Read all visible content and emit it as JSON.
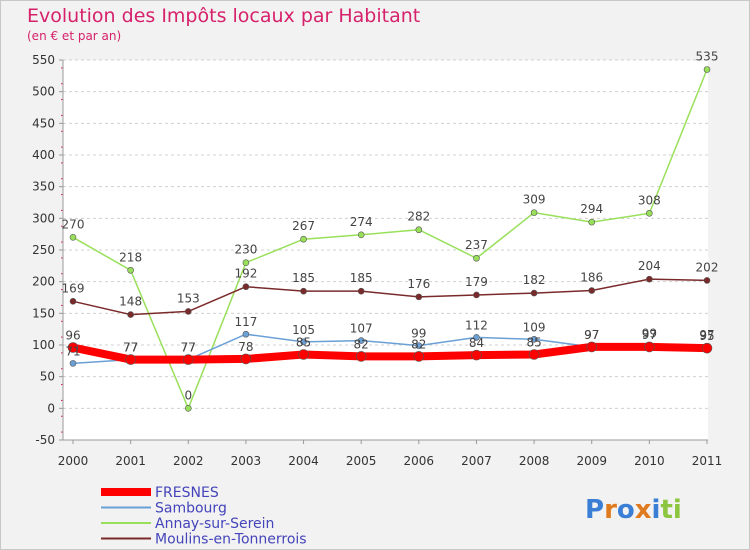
{
  "chart_data": {
    "type": "line",
    "title": "Evolution des Impôts locaux par Habitant",
    "subtitle": "(en € et par an)",
    "xlabel": "",
    "ylabel": "",
    "ylim": [
      -50,
      550
    ],
    "yticks": [
      -50,
      0,
      50,
      100,
      150,
      200,
      250,
      300,
      350,
      400,
      450,
      500,
      550
    ],
    "x": [
      "2000",
      "2001",
      "2002",
      "2003",
      "2004",
      "2005",
      "2006",
      "2007",
      "2008",
      "2009",
      "2010",
      "2011"
    ],
    "grid": "horizontal dashed",
    "legend_position": "bottom-left",
    "series": [
      {
        "name": "FRESNES",
        "color": "#ff0000",
        "values": [
          96,
          77,
          77,
          78,
          85,
          82,
          82,
          84,
          85,
          97,
          97,
          95
        ]
      },
      {
        "name": "Sambourg",
        "color": "#6aa0d6",
        "values": [
          71,
          77,
          77,
          117,
          105,
          107,
          99,
          112,
          109,
          97,
          99,
          97
        ]
      },
      {
        "name": "Annay-sur-Serein",
        "color": "#99e05a",
        "values": [
          270,
          218,
          0,
          230,
          267,
          274,
          282,
          237,
          309,
          294,
          308,
          535
        ]
      },
      {
        "name": "Moulins-en-Tonnerrois",
        "color": "#7a2a2a",
        "values": [
          169,
          148,
          153,
          192,
          185,
          185,
          176,
          179,
          182,
          186,
          204,
          202
        ]
      }
    ]
  },
  "logo": {
    "text": "Proxiti",
    "letters": [
      "P",
      "r",
      "o",
      "x",
      "i",
      "t",
      "i"
    ],
    "colors": [
      "#3a7fd5",
      "#e07a1f",
      "#3a7fd5",
      "#e07a1f",
      "#3a7fd5",
      "#8cc63f",
      "#8cc63f"
    ]
  }
}
